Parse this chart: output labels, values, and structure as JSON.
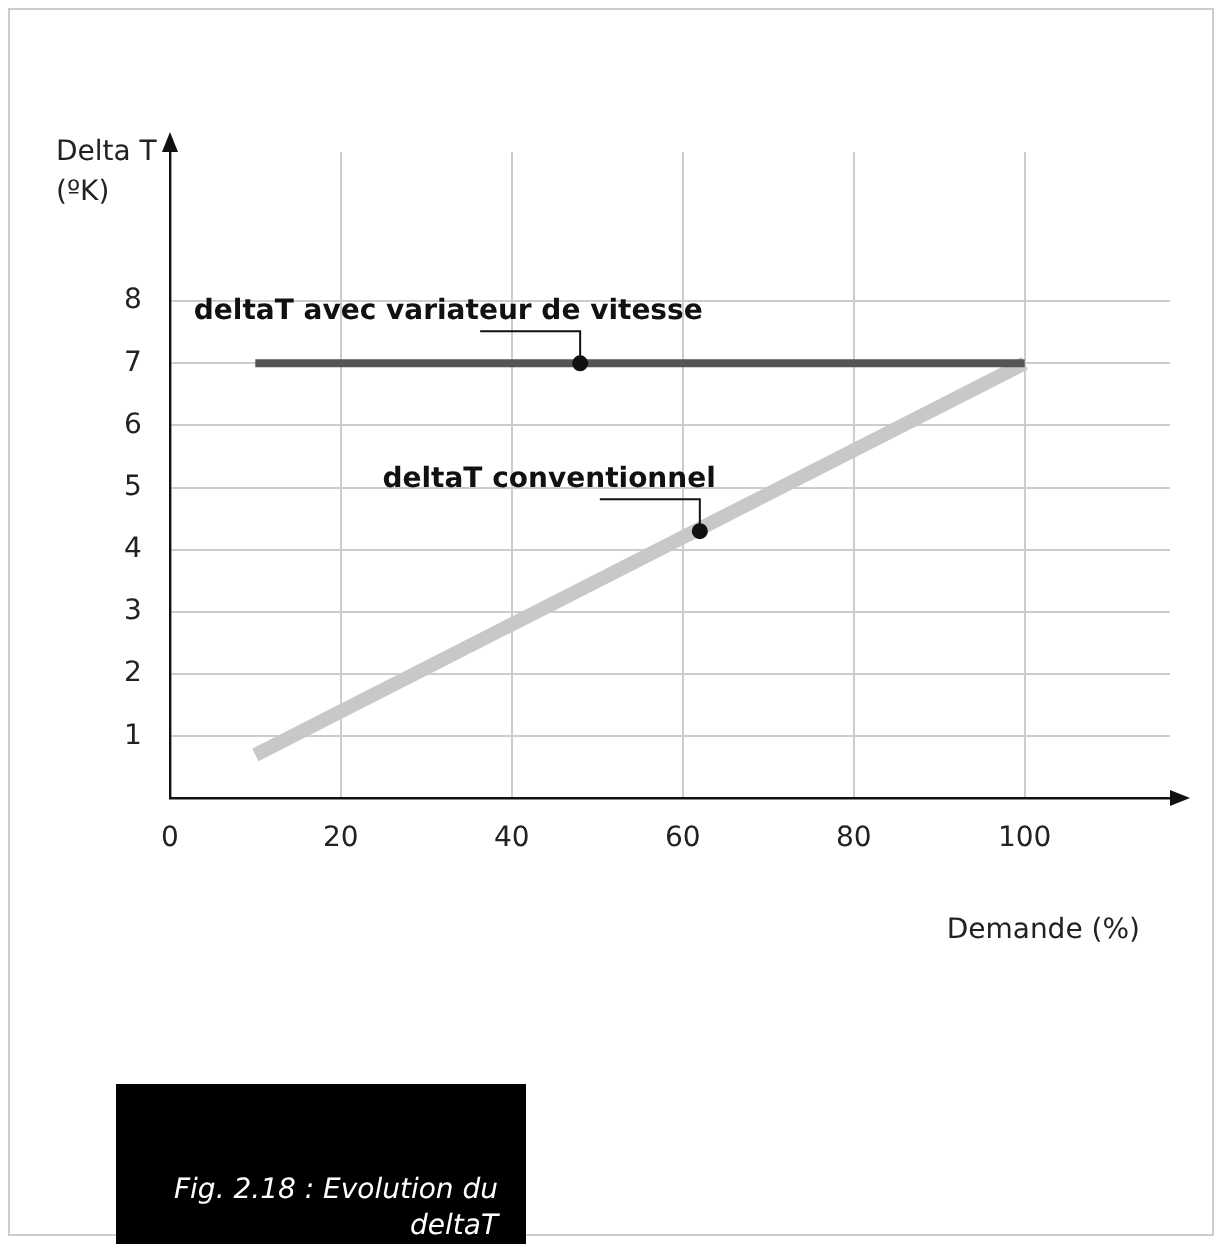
{
  "chart_data": {
    "type": "line",
    "ylabel": "Delta T (ºK)",
    "xlabel": "Demande (%)",
    "x": [
      10,
      100
    ],
    "series": [
      {
        "values": [
          7,
          7
        ],
        "color": "#555555"
      },
      {
        "values": [
          0.7,
          7
        ],
        "color": "#c8c8c8"
      }
    ],
    "xlim": [
      0,
      117
    ],
    "xticks": [
      0,
      20,
      40,
      60,
      80,
      100
    ],
    "ylim": [
      0,
      10.4
    ],
    "yticks": [
      1,
      2,
      3,
      4,
      5,
      6,
      7,
      8
    ],
    "grid": true,
    "marker": "none",
    "line_style": "solid",
    "annotations": [
      {
        "text": "deltaT avec variateur de vitesse",
        "x": 48,
        "y": 7
      },
      {
        "text": "deltaT conventionnel",
        "x": 62,
        "y": 4.3
      },
      "Fig. 2.18 : Evolution du deltaT"
    ]
  }
}
